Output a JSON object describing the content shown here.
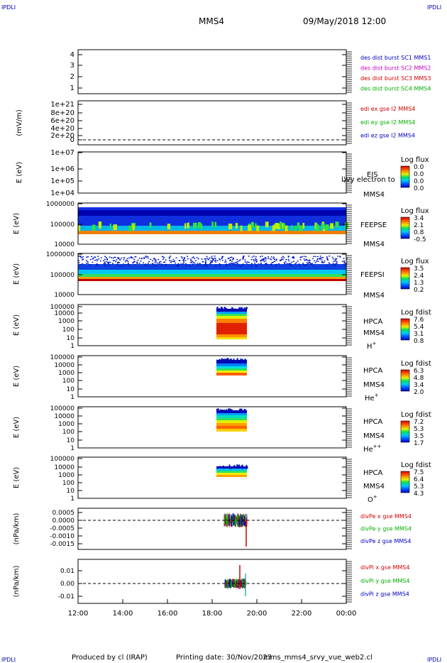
{
  "header": {
    "corner_tl": "IPDLI",
    "corner_tr": "IPDLI",
    "corner_bl": "IPDLI",
    "corner_br": "IPDLI",
    "title": "MMS4",
    "datetime": "09/May/2018 12:00"
  },
  "footer": {
    "produced_by": "Produced by cl (IRAP)",
    "printing_date": "Printing date: 30/Nov/2023",
    "filename": "mms_mms4_srvy_vue_web2.cl"
  },
  "chart_data": {
    "type": "heatmap",
    "x_ticks": [
      "12:00",
      "14:00",
      "16:00",
      "18:00",
      "20:00",
      "22:00",
      "00:00"
    ],
    "xlim_hours": [
      12,
      24
    ],
    "panels": [
      {
        "id": "burst",
        "ylabel": "",
        "y_ticks": [
          "4",
          "3",
          "2",
          "1"
        ],
        "legend": [
          {
            "text": "des dist burst SC1 MMS1",
            "color": "#0000c0"
          },
          {
            "text": "des dist burst SC2 MMS2",
            "color": "#c000c0"
          },
          {
            "text": "des dist burst SC3 MMS3",
            "color": "#d00000"
          },
          {
            "text": "des dist burst SC4 MMS4",
            "color": "#00b000"
          }
        ]
      },
      {
        "id": "edi",
        "ylabel": "(mV/m)",
        "y_ticks": [
          "1e+21",
          "8e+20",
          "6e+20",
          "4e+20",
          "2e+20",
          "0"
        ],
        "legend": [
          {
            "text": "edi ex gse l2 MMS4",
            "color": "#d00000"
          },
          {
            "text": "edi ey gse l2 MMS4",
            "color": "#00b000"
          },
          {
            "text": "edi ez gse l2 MMS4",
            "color": "#0000c0"
          }
        ]
      },
      {
        "id": "eis",
        "ylabel": "E (eV)",
        "y_ticks": [
          "1e+07",
          "1e+06",
          "1e+05",
          "1e+04"
        ],
        "side_label": "EIS",
        "side_label2": "MMS4",
        "overlay_label": "l)vy electron to",
        "cbar_title": "Log flux",
        "cbar_ticks": [
          "0.0",
          "0.0",
          "0.0",
          "0.0"
        ]
      },
      {
        "id": "feepse",
        "ylabel": "E (eV)",
        "y_ticks": [
          "1000000",
          "100000",
          "10000"
        ],
        "side_label": "FEEPSE",
        "side_label2": "MMS4",
        "cbar_title": "Log flux",
        "cbar_ticks": [
          "3.4",
          "2.1",
          "0.8",
          "-0.5"
        ]
      },
      {
        "id": "feepsi",
        "ylabel": "E (eV)",
        "y_ticks": [
          "1000000",
          "100000",
          "10000"
        ],
        "side_label": "FEEPSI",
        "side_label2": "MMS4",
        "cbar_title": "Log flux",
        "cbar_ticks": [
          "3.5",
          "2.4",
          "1.3",
          "0.2"
        ]
      },
      {
        "id": "hpca_h",
        "ylabel": "E (eV)",
        "y_ticks": [
          "100000",
          "10000",
          "1000",
          "100",
          "10",
          "1"
        ],
        "side_label": "HPCA",
        "side_label2": "MMS4",
        "species": "H",
        "species_sup": "+",
        "cbar_title": "Log fdist",
        "cbar_ticks": [
          "7.6",
          "5.4",
          "3.1",
          "0.8"
        ]
      },
      {
        "id": "hpca_he",
        "ylabel": "E (eV)",
        "y_ticks": [
          "100000",
          "10000",
          "1000",
          "100",
          "10",
          "1"
        ],
        "side_label": "HPCA",
        "side_label2": "MMS4",
        "species": "He",
        "species_sup": "+",
        "cbar_title": "Log fdist",
        "cbar_ticks": [
          "6.3",
          "4.8",
          "3.4",
          "2.0"
        ]
      },
      {
        "id": "hpca_hepp",
        "ylabel": "E (eV)",
        "y_ticks": [
          "100000",
          "10000",
          "1000",
          "100",
          "10",
          "1"
        ],
        "side_label": "HPCA",
        "side_label2": "MMS4",
        "species": "He",
        "species_sup": "++",
        "cbar_title": "Log fdist",
        "cbar_ticks": [
          "7.2",
          "5.3",
          "3.5",
          "1.7"
        ]
      },
      {
        "id": "hpca_o",
        "ylabel": "E (eV)",
        "y_ticks": [
          "100000",
          "10000",
          "1000",
          "100",
          "10",
          "1"
        ],
        "side_label": "HPCA",
        "side_label2": "MMS4",
        "species": "O",
        "species_sup": "+",
        "cbar_title": "Log fdist",
        "cbar_ticks": [
          "7.5",
          "6.4",
          "5.3",
          "4.3"
        ]
      },
      {
        "id": "divpe",
        "ylabel": "(nPa/km)",
        "y_ticks": [
          "0.0005",
          "0.0000",
          "-0.0005",
          "-0.0010",
          "-0.0015"
        ],
        "legend": [
          {
            "text": "divPe x gse MMS4",
            "color": "#d00000"
          },
          {
            "text": "divPe y gse MMS4",
            "color": "#00b000"
          },
          {
            "text": "divPe z gse MMS4",
            "color": "#0000c0"
          }
        ]
      },
      {
        "id": "divpi",
        "ylabel": "(nPa/km)",
        "y_ticks": [
          "0.01",
          "0.00",
          "-0.01"
        ],
        "legend": [
          {
            "text": "divPi x gse MMS4",
            "color": "#d00000"
          },
          {
            "text": "divPi y gse MMS4",
            "color": "#00b000"
          },
          {
            "text": "divPi z gse MMS4",
            "color": "#0000c0"
          }
        ]
      }
    ]
  }
}
